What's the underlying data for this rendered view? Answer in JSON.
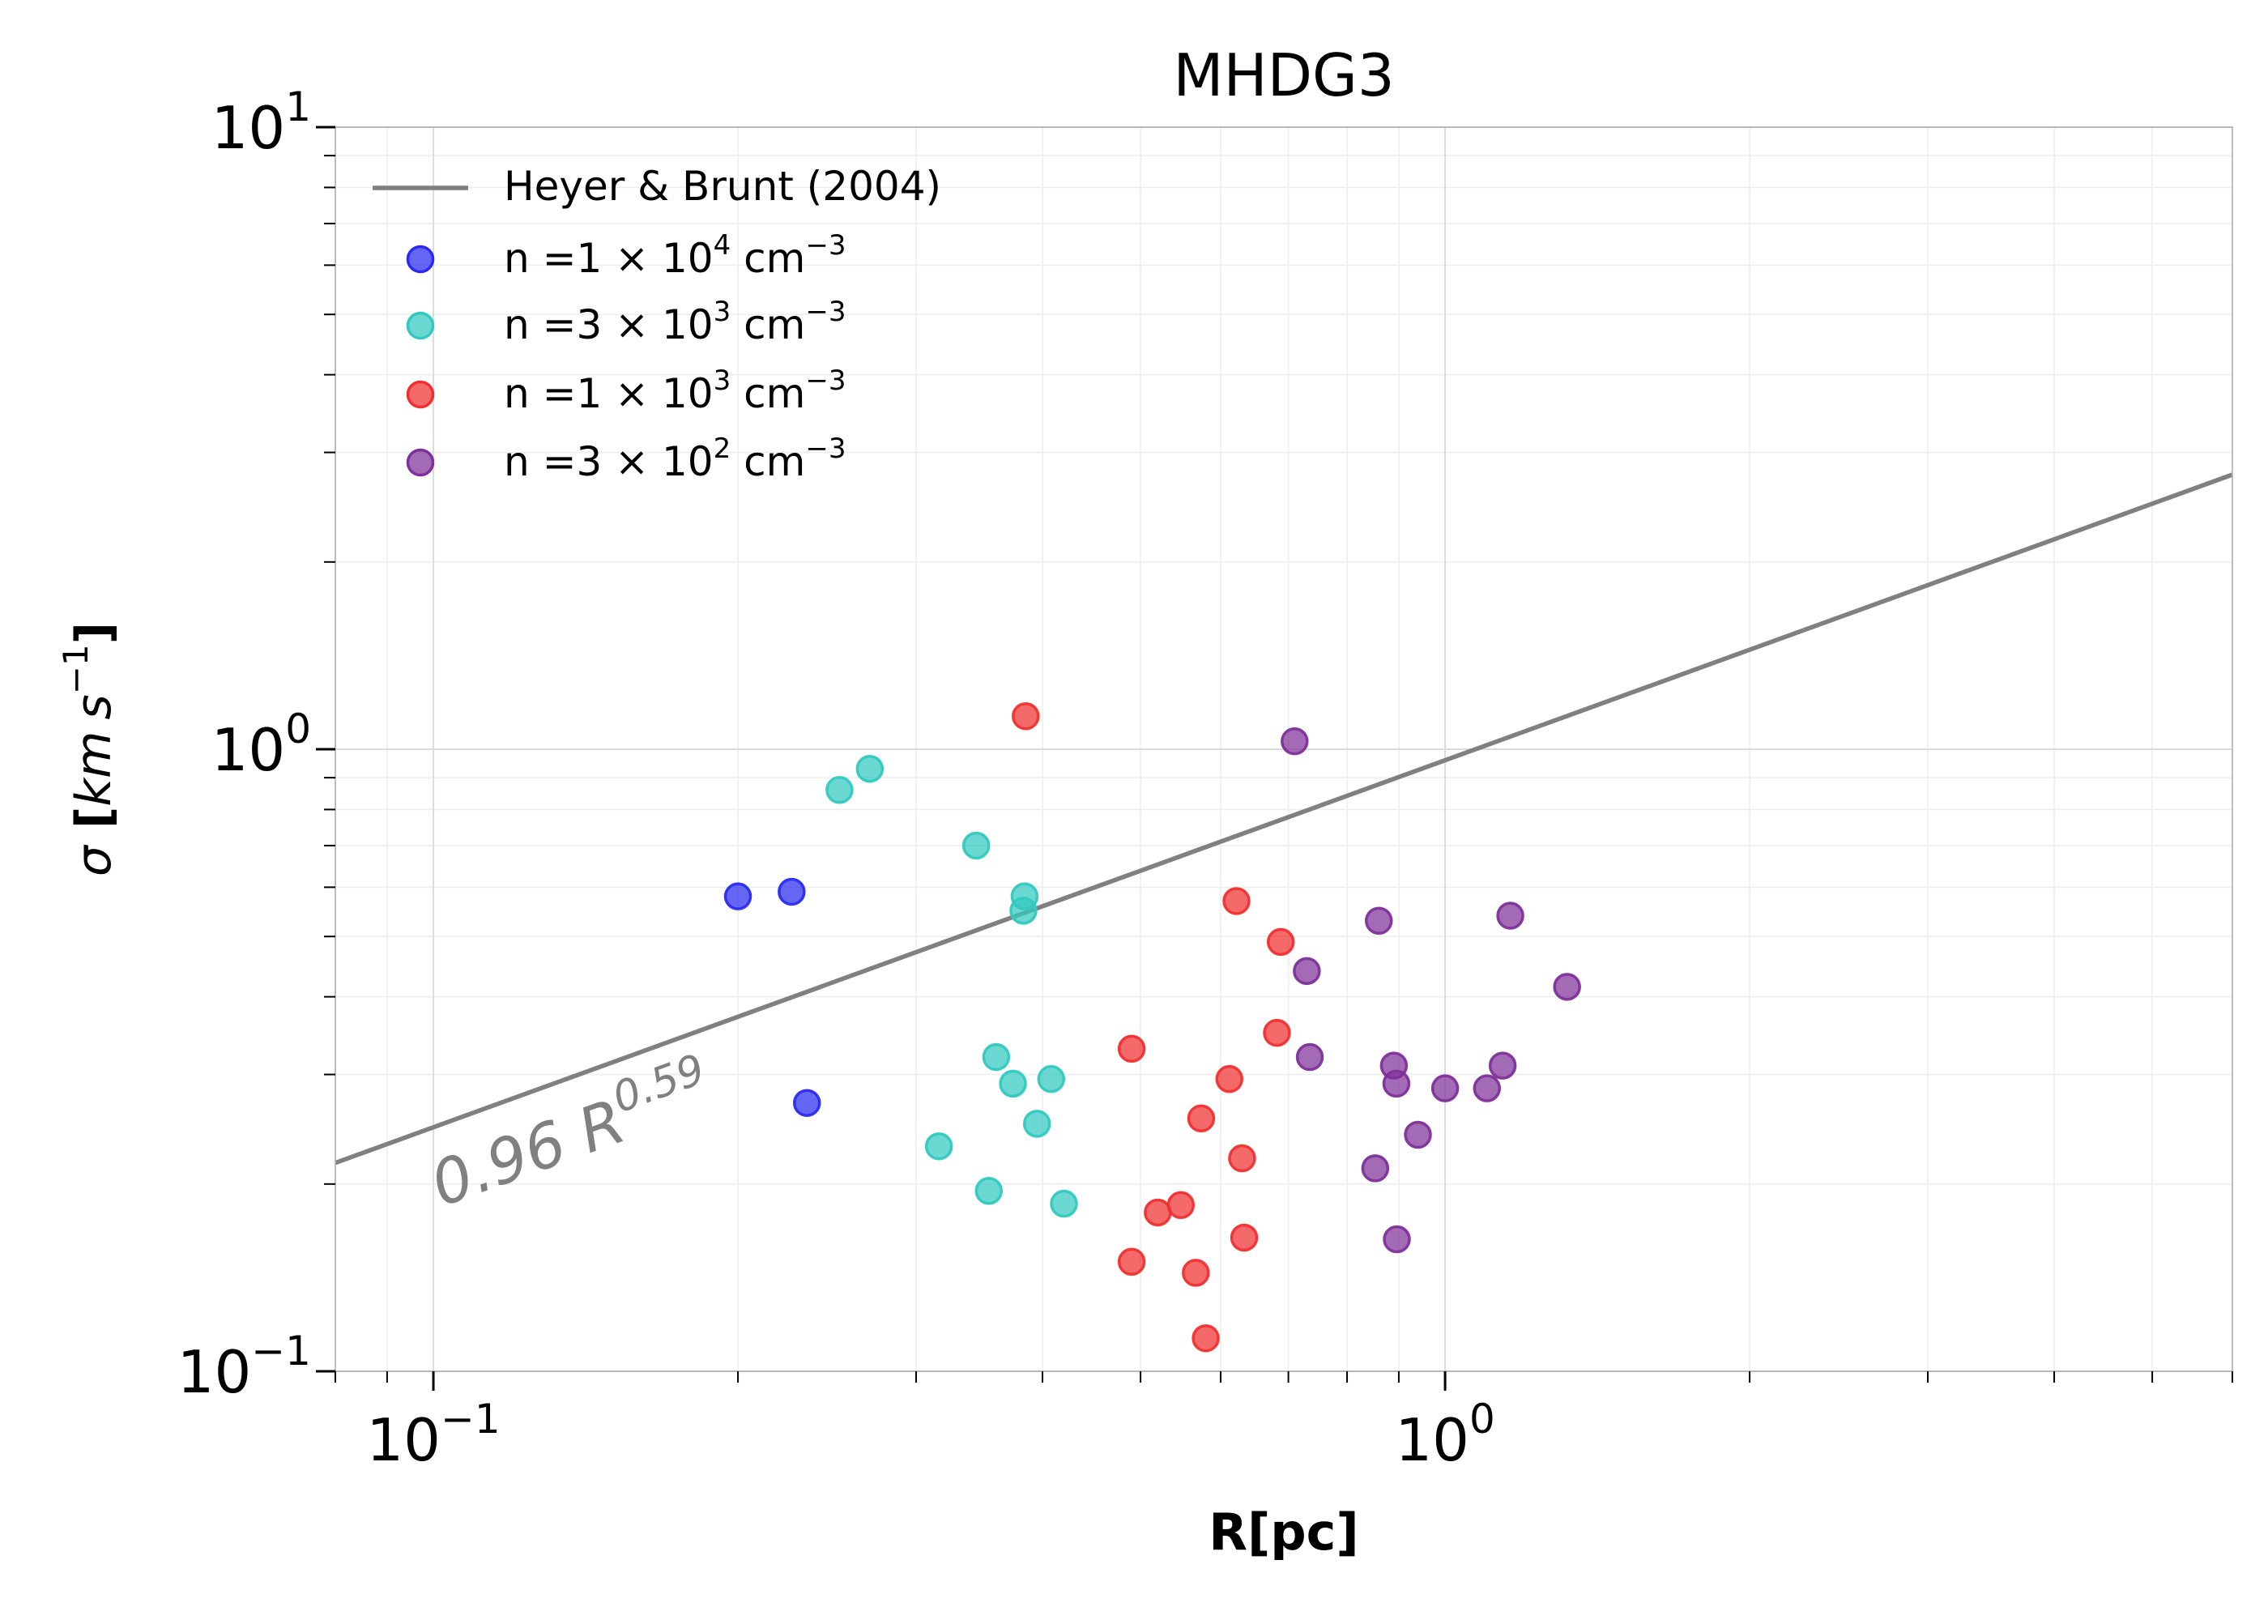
{
  "chart_data": {
    "type": "scatter",
    "title": "MHDG3",
    "xlabel": "R[pc]",
    "ylabel_parts": {
      "sym": "σ",
      "open": " [",
      "unit1": "km",
      "unit2": "s",
      "exp": "−1",
      "close": "]"
    },
    "xscale": "log",
    "yscale": "log",
    "xlim": [
      0.08,
      6.0
    ],
    "ylim": [
      0.1,
      10
    ],
    "grid": true,
    "legend_position": "top-left",
    "x_ticks": [
      {
        "value": 0.1,
        "base": "10",
        "exp": "−1"
      },
      {
        "value": 1,
        "base": "10",
        "exp": "0"
      }
    ],
    "y_ticks": [
      {
        "value": 0.1,
        "base": "10",
        "exp": "−1"
      },
      {
        "value": 1,
        "base": "10",
        "exp": "0"
      },
      {
        "value": 10,
        "base": "10",
        "exp": "1"
      }
    ],
    "fit_line": {
      "name": "Heyer & Brunt (2004)",
      "coefficient": 0.96,
      "exponent": 0.59,
      "color": "#808080",
      "annotation": {
        "coef": "0.96 R",
        "exp": "0.59"
      }
    },
    "series": [
      {
        "legend": {
          "prefix": "n =1 × 10",
          "exp": "4",
          "unit": " cm",
          "unit_exp": "−3"
        },
        "color": "#2b2bf0",
        "x": [
          0.2,
          0.226,
          0.234
        ],
        "y": [
          0.58,
          0.59,
          0.27
        ]
      },
      {
        "legend": {
          "prefix": "n =3 × 10",
          "exp": "3",
          "unit": " cm",
          "unit_exp": "−3"
        },
        "color": "#33c9c0",
        "x": [
          0.252,
          0.27,
          0.344,
          0.384,
          0.383,
          0.36,
          0.374,
          0.408,
          0.395,
          0.316,
          0.354,
          0.42
        ],
        "y": [
          0.86,
          0.93,
          0.7,
          0.58,
          0.55,
          0.32,
          0.29,
          0.295,
          0.25,
          0.23,
          0.195,
          0.186
        ]
      },
      {
        "legend": {
          "prefix": "n =1 × 10",
          "exp": "3",
          "unit": " cm",
          "unit_exp": "−3"
        },
        "color": "#f03030",
        "x": [
          0.385,
          0.622,
          0.688,
          0.682,
          0.49,
          0.612,
          0.574,
          0.63,
          0.52,
          0.548,
          0.49,
          0.567,
          0.58,
          0.633
        ],
        "y": [
          1.13,
          0.57,
          0.49,
          0.35,
          0.33,
          0.295,
          0.255,
          0.22,
          0.18,
          0.185,
          0.15,
          0.144,
          0.113,
          0.164
        ]
      },
      {
        "legend": {
          "prefix": "n =3 × 10",
          "exp": "2",
          "unit": " cm",
          "unit_exp": "−3"
        },
        "color": "#80309a",
        "x": [
          0.71,
          0.86,
          1.16,
          0.73,
          1.32,
          0.735,
          0.89,
          0.895,
          1.14,
          1.0,
          1.1,
          0.94,
          0.853,
          0.896
        ],
        "y": [
          1.03,
          0.53,
          0.54,
          0.44,
          0.415,
          0.32,
          0.31,
          0.29,
          0.31,
          0.285,
          0.285,
          0.24,
          0.212,
          0.163
        ]
      }
    ]
  }
}
